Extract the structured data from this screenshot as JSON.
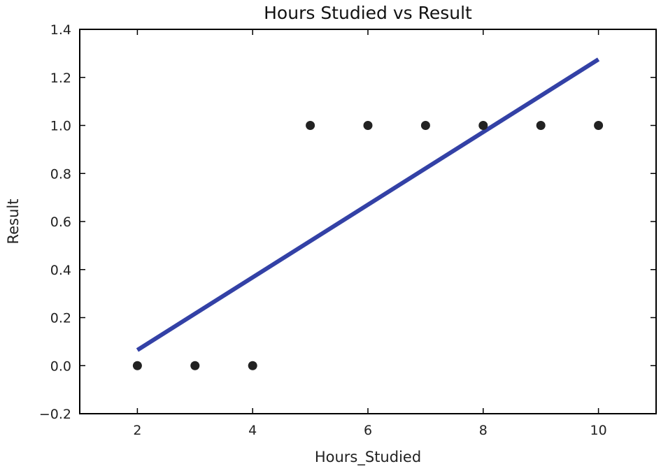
{
  "chart_data": {
    "type": "scatter",
    "title": "Hours Studied vs Result",
    "xlabel": "Hours_Studied",
    "ylabel": "Result",
    "xlim": [
      1,
      11
    ],
    "ylim": [
      -0.2,
      1.4
    ],
    "grid": false,
    "legend": "none",
    "x_ticks": [
      {
        "value": 2,
        "label": "2"
      },
      {
        "value": 4,
        "label": "4"
      },
      {
        "value": 6,
        "label": "6"
      },
      {
        "value": 8,
        "label": "8"
      },
      {
        "value": 10,
        "label": "10"
      }
    ],
    "y_ticks": [
      {
        "value": -0.2,
        "label": "−0.2"
      },
      {
        "value": 0.0,
        "label": "0.0"
      },
      {
        "value": 0.2,
        "label": "0.2"
      },
      {
        "value": 0.4,
        "label": "0.4"
      },
      {
        "value": 0.6,
        "label": "0.6"
      },
      {
        "value": 0.8,
        "label": "0.8"
      },
      {
        "value": 1.0,
        "label": "1.0"
      },
      {
        "value": 1.2,
        "label": "1.2"
      },
      {
        "value": 1.4,
        "label": "1.4"
      }
    ],
    "series": [
      {
        "kind": "scatter",
        "color": "#222222",
        "x": [
          2,
          3,
          4,
          5,
          6,
          7,
          8,
          9,
          10
        ],
        "y": [
          0,
          0,
          0,
          1,
          1,
          1,
          1,
          1,
          1
        ]
      },
      {
        "kind": "line",
        "color": "#3341a6",
        "x": [
          2,
          10
        ],
        "y": [
          0.065,
          1.275
        ]
      }
    ]
  }
}
